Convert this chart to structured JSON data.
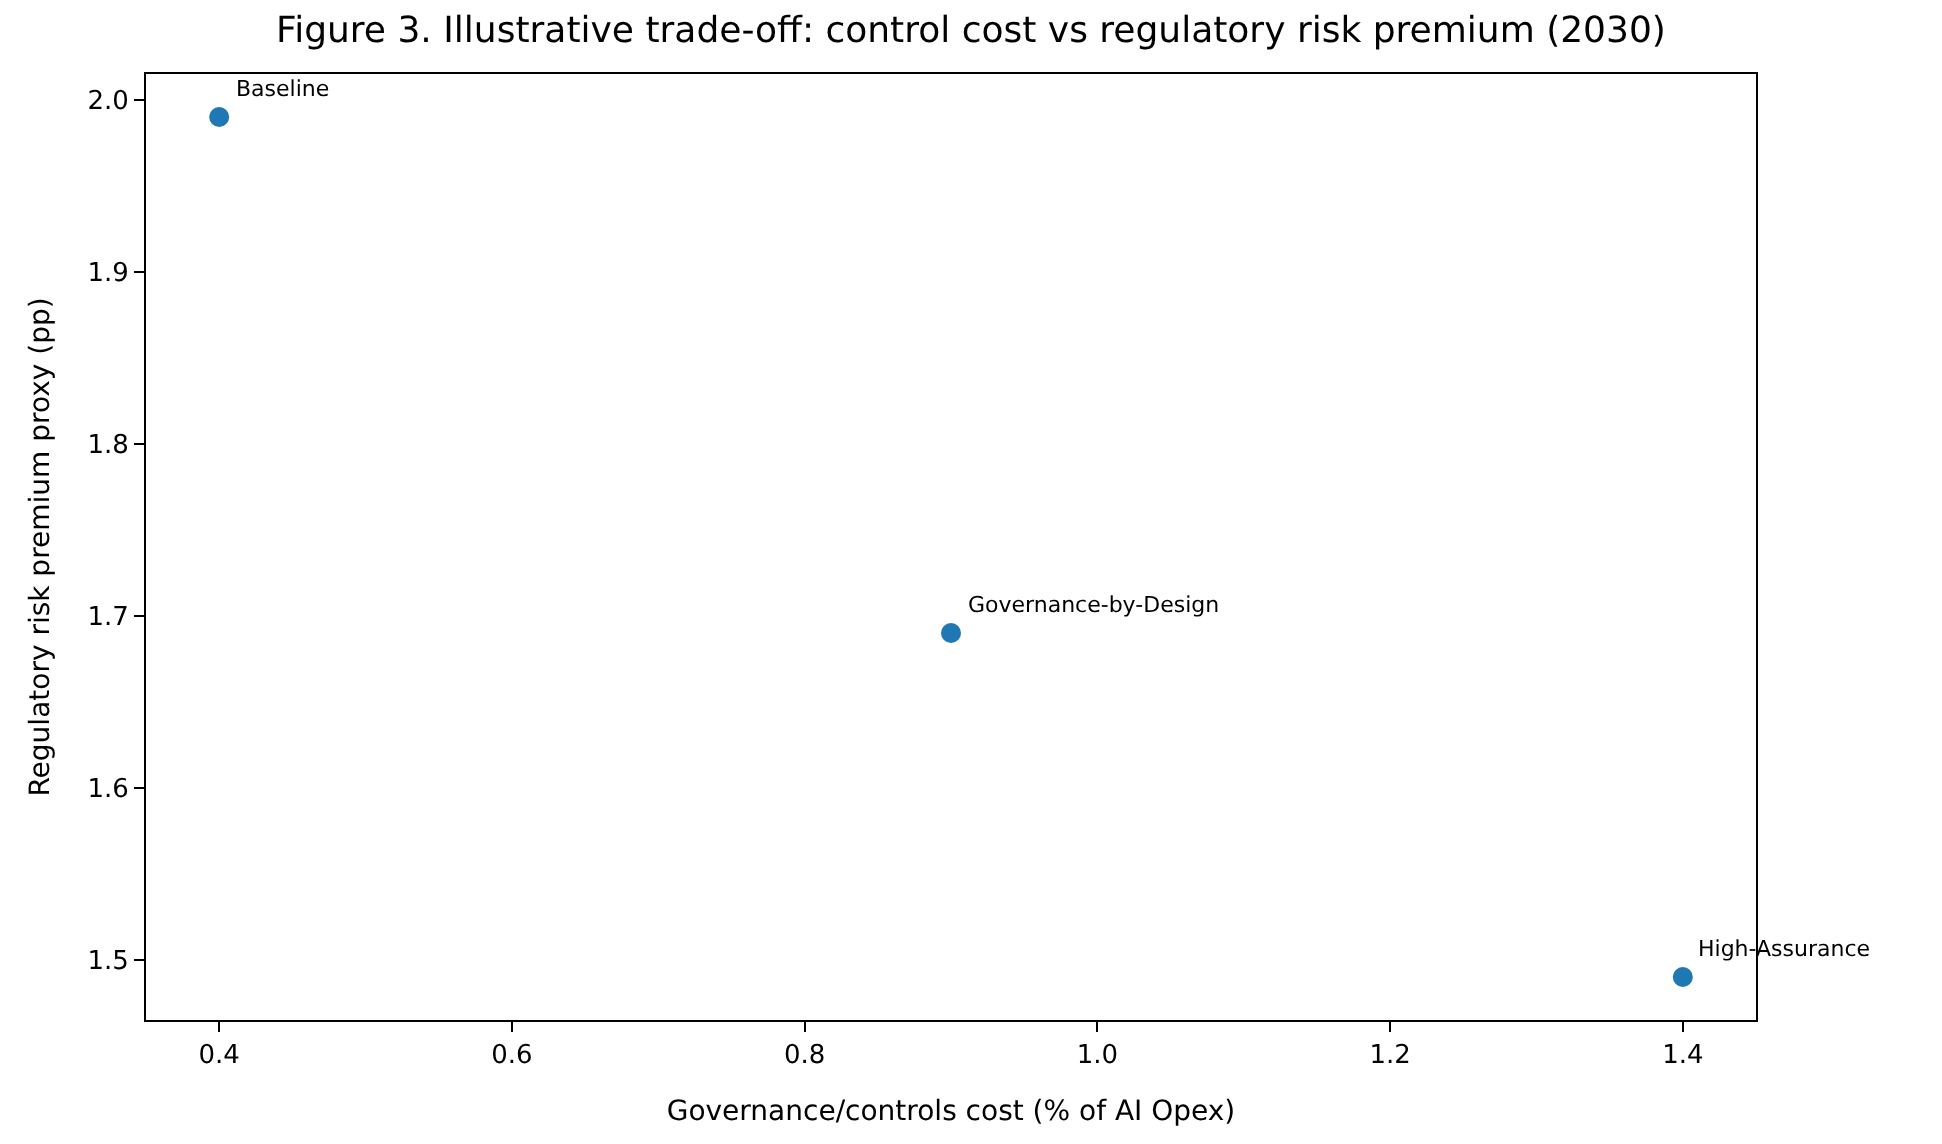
{
  "chart_data": {
    "type": "scatter",
    "title": "Figure 3. Illustrative trade-off: control cost vs regulatory risk premium (2030)",
    "xlabel": "Governance/controls cost (% of AI Opex)",
    "ylabel": "Regulatory risk premium proxy (pp)",
    "x": [
      0.4,
      0.9,
      1.4
    ],
    "series": [
      {
        "color": "#1f77b4",
        "values": [
          1.99,
          1.69,
          1.49
        ]
      }
    ],
    "annotations": [
      {
        "text": "Baseline",
        "x": 0.4,
        "y": 1.99
      },
      {
        "text": "Governance-by-Design",
        "x": 0.9,
        "y": 1.69
      },
      {
        "text": "High-Assurance",
        "x": 1.4,
        "y": 1.49
      }
    ],
    "xlim": [
      0.35,
      1.45
    ],
    "xticks": [
      0.4,
      0.6,
      0.8,
      {
        "value": 1.0,
        "label": "1.0"
      },
      1.2,
      1.4
    ],
    "ylim": [
      1.465,
      2.015
    ],
    "yticks": [
      1.5,
      1.6,
      1.7,
      1.8,
      1.9,
      {
        "value": 2.0,
        "label": "2.0"
      }
    ],
    "marker": "circle"
  }
}
